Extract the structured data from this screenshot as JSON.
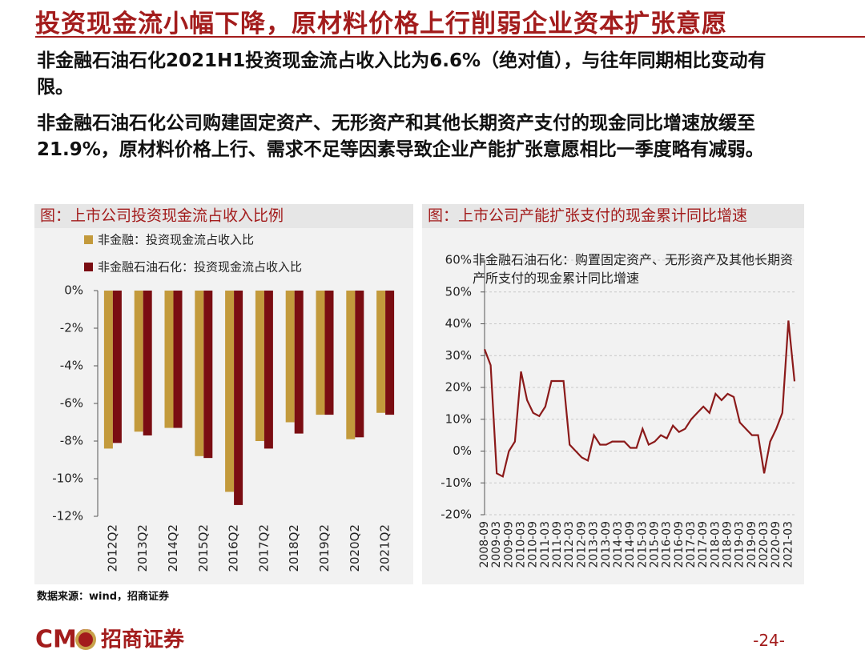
{
  "header": {
    "title": "投资现金流小幅下降，原材料价格上行削弱企业资本扩张意愿"
  },
  "paragraphs": [
    "非金融石油石化2021H1投资现金流占收入比为6.6%（绝对值），与往年同期相比变动有限。",
    "非金融石油石化公司购建固定资产、无形资产和其他长期资产支付的现金同比增速放缓至21.9%，原材料价格上行、需求不足等因素导致企业产能扩张意愿相比一季度略有减弱。"
  ],
  "chart_data": [
    {
      "type": "bar",
      "title": "图：上市公司投资现金流占收入比例",
      "categories": [
        "2012Q2",
        "2013Q2",
        "2014Q2",
        "2015Q2",
        "2016Q2",
        "2017Q2",
        "2018Q2",
        "2019Q2",
        "2020Q2",
        "2021Q2"
      ],
      "series": [
        {
          "name": "非金融：投资现金流占收入比",
          "color": "#c39a3c",
          "values": [
            -8.4,
            -7.5,
            -7.3,
            -8.8,
            -10.7,
            -8.0,
            -7.0,
            -6.6,
            -7.9,
            -6.5
          ]
        },
        {
          "name": "非金融石油石化：投资现金流占收入比",
          "color": "#7a0d12",
          "values": [
            -8.1,
            -7.7,
            -7.3,
            -8.9,
            -11.4,
            -8.4,
            -7.6,
            -6.6,
            -7.8,
            -6.6
          ]
        }
      ],
      "ylim": [
        -12,
        0
      ],
      "yticks": [
        {
          "value": 0,
          "label": "0%"
        },
        {
          "value": -2,
          "label": "-2%"
        },
        {
          "value": -4,
          "label": "-4%"
        },
        {
          "value": -6,
          "label": "-6%"
        },
        {
          "value": -8,
          "label": "-8%"
        },
        {
          "value": -10,
          "label": "-10%"
        },
        {
          "value": -12,
          "label": "-12%"
        }
      ],
      "grid": false
    },
    {
      "type": "line",
      "title": "图：上市公司产能扩张支付的现金累计同比增速",
      "categories": [
        "2008-09",
        null,
        "2009-03",
        null,
        "2009-09",
        null,
        "2010-03",
        null,
        "2010-09",
        null,
        "2011-03",
        null,
        "2011-09",
        null,
        "2012-03",
        null,
        "2012-09",
        null,
        "2013-03",
        null,
        "2013-09",
        null,
        "2014-03",
        null,
        "2014-09",
        null,
        "2015-03",
        null,
        "2015-09",
        null,
        "2016-03",
        null,
        "2016-09",
        null,
        "2017-03",
        null,
        "2017-09",
        null,
        "2018-03",
        null,
        "2018-09",
        null,
        "2019-03",
        null,
        "2019-09",
        null,
        "2020-03",
        null,
        "2020-09",
        null,
        "2021-03",
        null
      ],
      "series": [
        {
          "name": "非金融石油石化：购置固定资产、无形资产及其他长期资产所支付的现金累计同比增速",
          "color": "#8b1a1a",
          "values": [
            32,
            27,
            -7,
            -8,
            0,
            3,
            25,
            16,
            12,
            11,
            14,
            22,
            22,
            22,
            2,
            0,
            -2,
            -3,
            5,
            2,
            2,
            3,
            3,
            3,
            1,
            1,
            7,
            2,
            3,
            5,
            4,
            8,
            6,
            7,
            10,
            12,
            14,
            12,
            18,
            16,
            18,
            17,
            9,
            7,
            5,
            5,
            -7,
            3,
            7,
            12,
            41,
            21.9
          ]
        }
      ],
      "ylim": [
        -20,
        60
      ],
      "yticks": [
        {
          "value": -20,
          "label": "-20%"
        },
        {
          "value": -10,
          "label": "-10%"
        },
        {
          "value": 0,
          "label": "0%"
        },
        {
          "value": 10,
          "label": "10%"
        },
        {
          "value": 20,
          "label": "20%"
        },
        {
          "value": 30,
          "label": "30%"
        },
        {
          "value": 40,
          "label": "40%"
        },
        {
          "value": 50,
          "label": "50%"
        },
        {
          "value": 60,
          "label": "60%"
        }
      ],
      "grid": true
    }
  ],
  "source": "数据来源：wind，招商证券",
  "footer": {
    "logo_text": "CMS",
    "brand": "招商证券",
    "page": "-24-"
  }
}
